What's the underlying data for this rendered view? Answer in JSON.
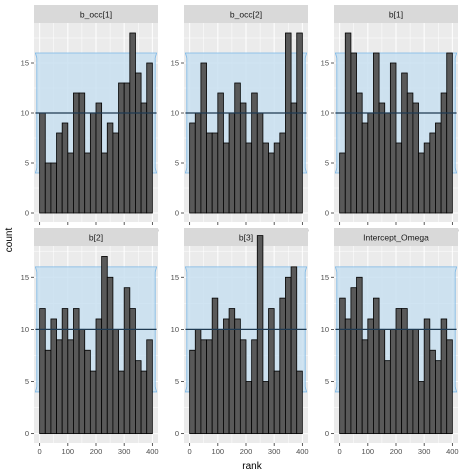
{
  "chart_data": {
    "type": "bar",
    "xlabel": "rank",
    "ylabel": "count",
    "x_breaks": [
      0,
      100,
      200,
      300,
      400
    ],
    "x_tick_labels": [
      "0",
      "100",
      "200",
      "300",
      "400"
    ],
    "xlim": [
      -20,
      420
    ],
    "y_breaks": [
      0,
      5,
      10,
      15
    ],
    "y_tick_labels": [
      "0",
      "5",
      "10",
      "15"
    ],
    "ylim_top_row": [
      -0.9,
      19
    ],
    "ylim_bottom_row": [
      -0.9,
      18
    ],
    "bin_width": 20,
    "bin_centers": [
      10,
      30,
      50,
      70,
      90,
      110,
      130,
      150,
      170,
      190,
      210,
      230,
      250,
      270,
      290,
      310,
      330,
      350,
      370,
      390
    ],
    "reference": {
      "center": 10,
      "band_outer": [
        4,
        16
      ],
      "band_inner": [
        4.5,
        15.5
      ]
    },
    "colors": {
      "bar_fill": "#595959",
      "bar_stroke": "#000000",
      "band_fill": "#c5dff0",
      "band_stroke": "#79b6e6",
      "panel_bg": "#ebebeb",
      "grid": "#ffffff",
      "strip_bg": "#d9d9d9",
      "ref_line": "#1f3a52"
    },
    "panels": [
      {
        "name": "b_occ[1]",
        "row": 0,
        "col": 0,
        "values": [
          10,
          5,
          5,
          8,
          9,
          6,
          12,
          12,
          6,
          10,
          11,
          6,
          9,
          8,
          13,
          13,
          18,
          14,
          11,
          15
        ]
      },
      {
        "name": "b_occ[2]",
        "row": 0,
        "col": 1,
        "values": [
          9,
          10,
          15,
          8,
          8,
          12,
          7,
          10,
          13,
          11,
          7,
          12,
          10,
          7,
          6,
          7,
          8,
          18,
          11,
          18
        ]
      },
      {
        "name": "b[1]",
        "row": 0,
        "col": 2,
        "values": [
          6,
          18,
          16,
          12,
          9,
          10,
          16,
          11,
          10,
          15,
          7,
          14,
          12,
          11,
          6,
          7,
          8,
          9,
          12,
          16
        ]
      },
      {
        "name": "b[2]",
        "row": 1,
        "col": 0,
        "values": [
          12,
          8,
          11,
          9,
          12,
          9,
          12,
          10,
          8,
          6,
          11,
          17,
          15,
          10,
          6,
          14,
          12,
          7,
          6,
          9
        ]
      },
      {
        "name": "b[3]",
        "row": 1,
        "col": 1,
        "values": [
          8,
          10,
          9,
          9,
          13,
          10,
          11,
          12,
          11,
          9,
          5,
          9,
          19,
          5,
          12,
          6,
          13,
          15,
          16,
          6
        ]
      },
      {
        "name": "Intercept_Omega",
        "row": 1,
        "col": 2,
        "values": [
          13,
          11,
          14,
          15,
          9,
          11,
          13,
          10,
          7,
          10,
          12,
          12,
          10,
          10,
          5,
          11,
          8,
          7,
          11,
          9
        ]
      }
    ]
  }
}
